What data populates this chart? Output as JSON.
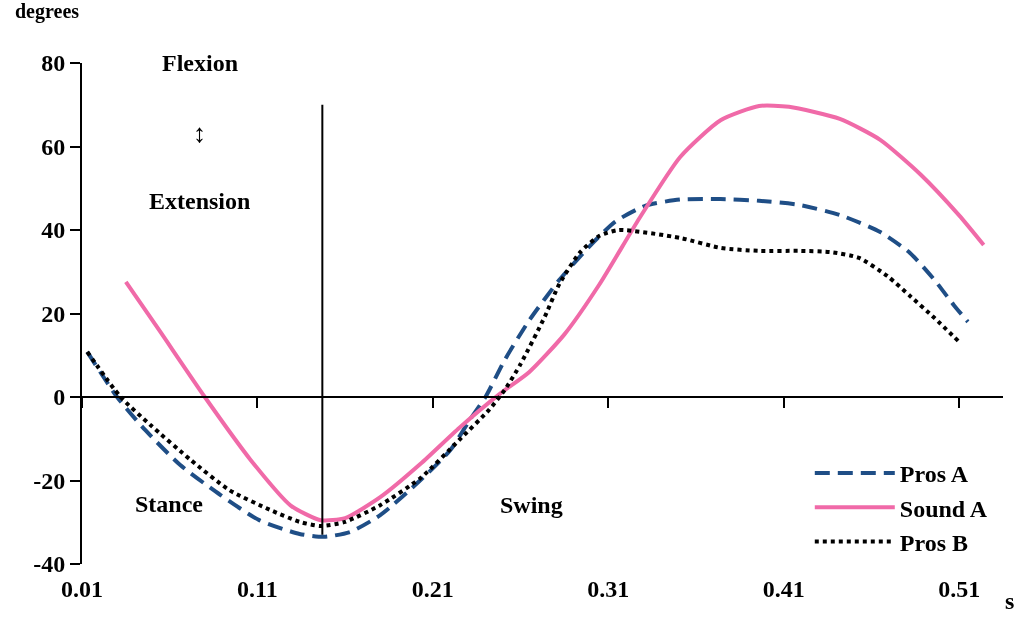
{
  "chart_data": {
    "type": "line",
    "xlabel": "s",
    "ylabel": "degrees",
    "annotations": [
      "Flexion",
      "↕",
      "Extension",
      "Stance",
      "Swing"
    ],
    "xlim": [
      0.01,
      0.535
    ],
    "xticks": [
      0.01,
      0.11,
      0.21,
      0.31,
      0.41,
      0.51
    ],
    "ylim": [
      -40,
      80
    ],
    "yticks": [
      -40,
      -20,
      0,
      20,
      40,
      60,
      80
    ],
    "legend": "bottom right",
    "ref_lines": [
      {
        "axis": "y",
        "value": 0,
        "color": "#000000",
        "line_style": "solid"
      }
    ],
    "series": [
      {
        "name": "Pros A",
        "color": "#1f4e86",
        "line_style": "dashed",
        "x": [
          0.013,
          0.03,
          0.046,
          0.066,
          0.089,
          0.111,
          0.134,
          0.148,
          0.163,
          0.18,
          0.203,
          0.22,
          0.231,
          0.24,
          0.251,
          0.265,
          0.282,
          0.3,
          0.314,
          0.331,
          0.351,
          0.374,
          0.396,
          0.419,
          0.442,
          0.465,
          0.482,
          0.496,
          0.507,
          0.515
        ],
        "values": [
          10.8,
          0,
          -7.9,
          -16.3,
          -23.5,
          -29.5,
          -32.8,
          -33.5,
          -32.3,
          -28.3,
          -19.9,
          -12.7,
          -5.5,
          0,
          8.9,
          18.4,
          28,
          36.4,
          42,
          45.8,
          47.3,
          47.4,
          47,
          46,
          43.6,
          39.5,
          34.5,
          28,
          22,
          18
        ]
      },
      {
        "name": "Sound A",
        "color": "#f06aa8",
        "line_style": "solid",
        "x": [
          0.035,
          0.054,
          0.08,
          0.106,
          0.129,
          0.146,
          0.16,
          0.18,
          0.203,
          0.225,
          0.248,
          0.265,
          0.285,
          0.305,
          0.328,
          0.351,
          0.374,
          0.396,
          0.413,
          0.442,
          0.465,
          0.488,
          0.51,
          0.524
        ],
        "values": [
          27.6,
          16,
          0,
          -15,
          -26,
          -29.5,
          -29,
          -24,
          -16,
          -7.4,
          0.7,
          6,
          15,
          27,
          43,
          57.5,
          66.3,
          69.7,
          69.5,
          66.6,
          61.6,
          53.3,
          43.5,
          36.4
        ]
      },
      {
        "name": "Pros B",
        "color": "#000000",
        "line_style": "dotted",
        "x": [
          0.013,
          0.032,
          0.049,
          0.072,
          0.094,
          0.117,
          0.134,
          0.146,
          0.16,
          0.18,
          0.203,
          0.225,
          0.242,
          0.251,
          0.26,
          0.274,
          0.282,
          0.294,
          0.305,
          0.316,
          0.351,
          0.374,
          0.396,
          0.419,
          0.437,
          0.453,
          0.469,
          0.482,
          0.496,
          0.51
        ],
        "values": [
          10.8,
          0,
          -6.7,
          -15.1,
          -22.3,
          -27,
          -29.9,
          -30.9,
          -29.9,
          -25.9,
          -19.4,
          -10.3,
          -3.1,
          1.7,
          7.9,
          19.4,
          27,
          34.7,
          38.6,
          40,
          38.1,
          35.7,
          35,
          35,
          34.7,
          33.3,
          29,
          24.2,
          18.9,
          13.2
        ]
      },
      {
        "color": "#000000",
        "line_style": "solid",
        "x": [
          0.147,
          0.147
        ],
        "values": [
          70,
          -33
        ]
      }
    ]
  }
}
